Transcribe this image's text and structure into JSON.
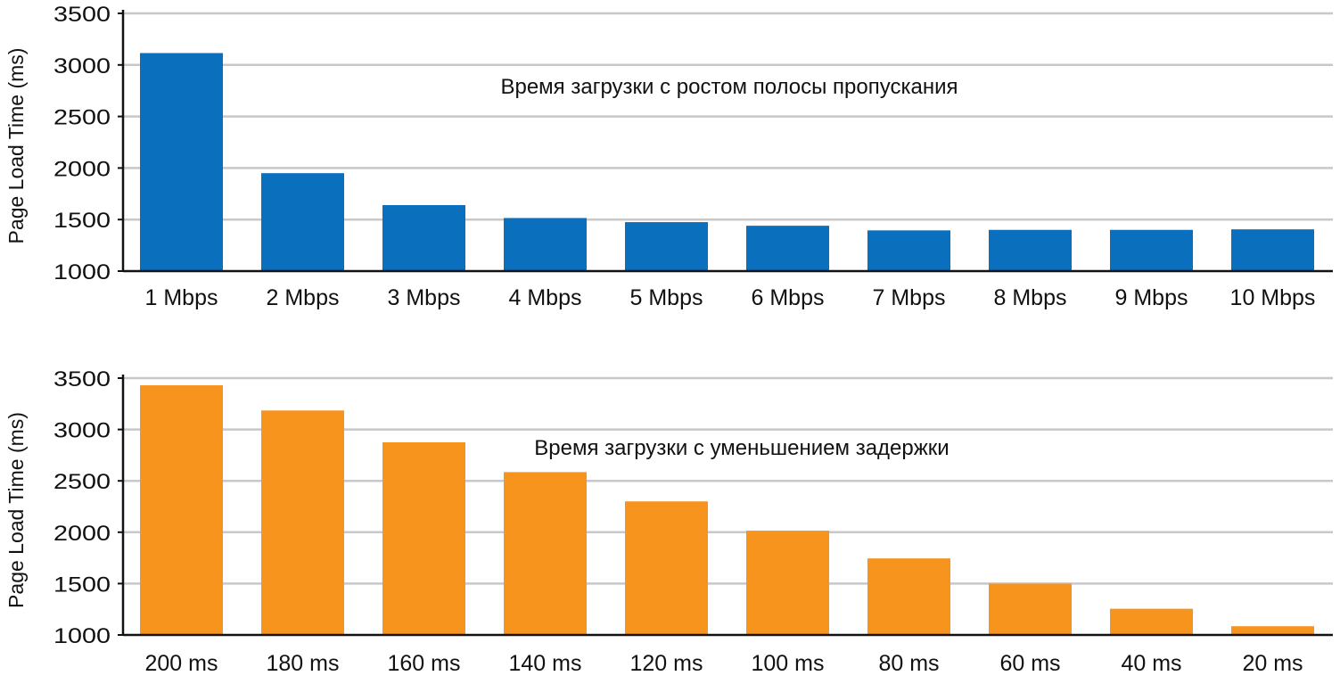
{
  "chart_data": [
    {
      "type": "bar",
      "title": "Время загрузки с ростом полосы пропускания",
      "ylabel": "Page Load Time (ms)",
      "xlabel": "",
      "categories": [
        "1 Mbps",
        "2 Mbps",
        "3 Mbps",
        "4 Mbps",
        "5 Mbps",
        "6 Mbps",
        "7 Mbps",
        "8 Mbps",
        "9 Mbps",
        "10 Mbps"
      ],
      "values": [
        3115,
        1950,
        1640,
        1515,
        1475,
        1440,
        1395,
        1400,
        1400,
        1405
      ],
      "ylim": [
        1000,
        3500
      ],
      "yticks": [
        "1000",
        "1500",
        "2000",
        "2500",
        "3000",
        "3500"
      ],
      "ytick_values": [
        1000,
        1500,
        2000,
        2500,
        3000,
        3500
      ],
      "grid": true,
      "color": "#0a6fbd"
    },
    {
      "type": "bar",
      "title": "Время загрузки с уменьшением задержки",
      "ylabel": "Page Load Time (ms)",
      "xlabel": "",
      "categories": [
        "200 ms",
        "180 ms",
        "160 ms",
        "140 ms",
        "120 ms",
        "100 ms",
        "80 ms",
        "60 ms",
        "40 ms",
        "20 ms"
      ],
      "values": [
        3430,
        3185,
        2875,
        2585,
        2300,
        2015,
        1745,
        1500,
        1255,
        1085
      ],
      "ylim": [
        1000,
        3500
      ],
      "yticks": [
        "1000",
        "1500",
        "2000",
        "2500",
        "3000",
        "3500"
      ],
      "ytick_values": [
        1000,
        1500,
        2000,
        2500,
        3000,
        3500
      ],
      "grid": true,
      "color": "#f7941e"
    }
  ]
}
